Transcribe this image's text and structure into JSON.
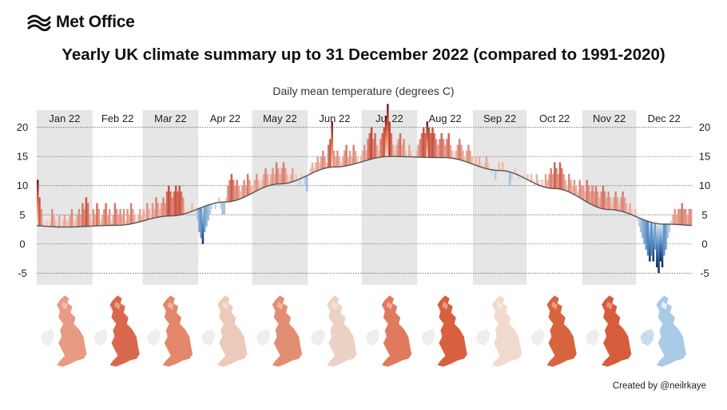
{
  "brand": {
    "logo_text": "Met Office",
    "logo_icon": "met-office-wave-icon"
  },
  "title": "Yearly UK climate summary up to 31 December 2022 (compared to 1991-2020)",
  "subtitle": "Daily mean temperature (degrees C)",
  "credit": "Created by @neilrkaye",
  "colors": {
    "warm_dark": "#7a0a14",
    "warm_mid": "#c0392b",
    "warm_light": "#fde0cf",
    "cold_light": "#dde8f3",
    "cold_mid": "#4f86bf",
    "cold_dark": "#0b2a5e",
    "normal_line": "#555555",
    "month_band": "#e6e6e6",
    "grid": "#555555"
  },
  "chart_data": {
    "type": "bar",
    "title": "Daily mean temperature (degrees C)",
    "ylim": [
      -7,
      22
    ],
    "yticks": [
      20,
      15,
      10,
      5,
      0,
      -5
    ],
    "grid": true,
    "months": [
      "Jan 22",
      "Feb 22",
      "Mar 22",
      "Apr 22",
      "May 22",
      "Jun 22",
      "Jul 22",
      "Aug 22",
      "Sep 22",
      "Oct 22",
      "Nov 22",
      "Dec 22"
    ],
    "days_in_month": [
      31,
      28,
      31,
      30,
      31,
      30,
      31,
      31,
      30,
      31,
      30,
      31
    ],
    "normal_monthly": [
      2.9,
      3.2,
      4.8,
      7.2,
      10.3,
      13.2,
      15.0,
      14.8,
      12.6,
      9.5,
      5.9,
      3.4
    ],
    "series": [
      {
        "name": "Daily mean temperature",
        "values": [
          11,
          8,
          6,
          4,
          3,
          4,
          3,
          4,
          6,
          5,
          4,
          3,
          5,
          3,
          4,
          5,
          4,
          4,
          5,
          6,
          4,
          4,
          5,
          6,
          5,
          7,
          6,
          8,
          7,
          5,
          4,
          6,
          5,
          7,
          6,
          4,
          5,
          6,
          7,
          5,
          6,
          4,
          5,
          7,
          6,
          5,
          6,
          5,
          6,
          4,
          6,
          5,
          7,
          6,
          5,
          4,
          5,
          6,
          5,
          6,
          5,
          7,
          6,
          5,
          7,
          6,
          8,
          7,
          6,
          7,
          8,
          7,
          9,
          10,
          9,
          8,
          9,
          10,
          9,
          10,
          9,
          8,
          6,
          5,
          6,
          6,
          7,
          6,
          5,
          4,
          2,
          1,
          0,
          2,
          3,
          4,
          5,
          6,
          7,
          6,
          7,
          8,
          6,
          5,
          5,
          8,
          10,
          11,
          12,
          11,
          10,
          11,
          10,
          9,
          10,
          11,
          10,
          12,
          11,
          10,
          10,
          11,
          12,
          11,
          10,
          11,
          12,
          13,
          12,
          11,
          12,
          13,
          12,
          14,
          13,
          12,
          13,
          14,
          13,
          12,
          11,
          12,
          13,
          11,
          12,
          11,
          10,
          12,
          11,
          10,
          9,
          12,
          13,
          14,
          13,
          14,
          15,
          14,
          15,
          16,
          15,
          14,
          17,
          18,
          21,
          16,
          15,
          16,
          15,
          14,
          15,
          16,
          17,
          15,
          16,
          15,
          17,
          16,
          15,
          14,
          15,
          16,
          17,
          16,
          18,
          19,
          20,
          18,
          19,
          17,
          16,
          18,
          19,
          20,
          22,
          24,
          21,
          19,
          17,
          16,
          17,
          18,
          19,
          17,
          18,
          16,
          15,
          17,
          16,
          15,
          15,
          16,
          17,
          18,
          19,
          20,
          19,
          21,
          20,
          19,
          20,
          19,
          18,
          17,
          18,
          19,
          18,
          17,
          18,
          19,
          17,
          16,
          15,
          16,
          17,
          18,
          17,
          16,
          15,
          16,
          17,
          16,
          15,
          14,
          15,
          14,
          15,
          14,
          13,
          14,
          15,
          14,
          13,
          12,
          13,
          11,
          12,
          14,
          13,
          14,
          13,
          12,
          13,
          10,
          11,
          12,
          13,
          12,
          11,
          12,
          11,
          12,
          11,
          12,
          11,
          12,
          11,
          10,
          12,
          11,
          10,
          11,
          10,
          12,
          11,
          12,
          13,
          12,
          14,
          13,
          12,
          14,
          13,
          12,
          11,
          10,
          12,
          11,
          10,
          11,
          10,
          9,
          11,
          10,
          10,
          9,
          11,
          10,
          9,
          10,
          9,
          10,
          9,
          8,
          9,
          10,
          9,
          8,
          9,
          8,
          7,
          8,
          9,
          8,
          7,
          8,
          9,
          8,
          7,
          6,
          7,
          6,
          5,
          6,
          4,
          3,
          2,
          1,
          0,
          -1,
          -2,
          -3,
          -2,
          -3,
          -1,
          -4,
          -5,
          -3,
          -4,
          -2,
          -1,
          1,
          2,
          4,
          5,
          6,
          5,
          6,
          6,
          7,
          6,
          6,
          5,
          6,
          6
        ]
      }
    ]
  }
}
